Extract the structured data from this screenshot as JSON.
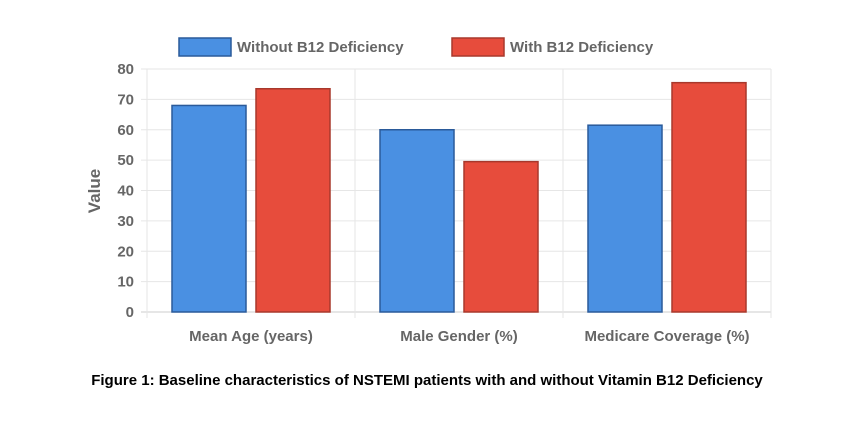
{
  "chart_data": {
    "type": "bar",
    "categories": [
      "Mean Age (years)",
      "Male Gender (%)",
      "Medicare Coverage (%)"
    ],
    "series": [
      {
        "name": "Without B12 Deficiency",
        "values": [
          68,
          60,
          61.5
        ],
        "color": "#4a90e2",
        "stroke": "#2a5a9a"
      },
      {
        "name": "With B12 Deficiency",
        "values": [
          73.5,
          49.5,
          75.5
        ],
        "color": "#e74c3c",
        "stroke": "#a8382c"
      }
    ],
    "title": "",
    "xlabel": "",
    "ylabel": "Value",
    "ylim": [
      0,
      80
    ],
    "yticks": [
      "0",
      "10",
      "20",
      "30",
      "40",
      "50",
      "60",
      "70",
      "80"
    ],
    "grid": true,
    "legend": "top-center"
  },
  "caption": "Figure 1: Baseline characteristics of NSTEMI patients with and without Vitamin B12 Deficiency"
}
